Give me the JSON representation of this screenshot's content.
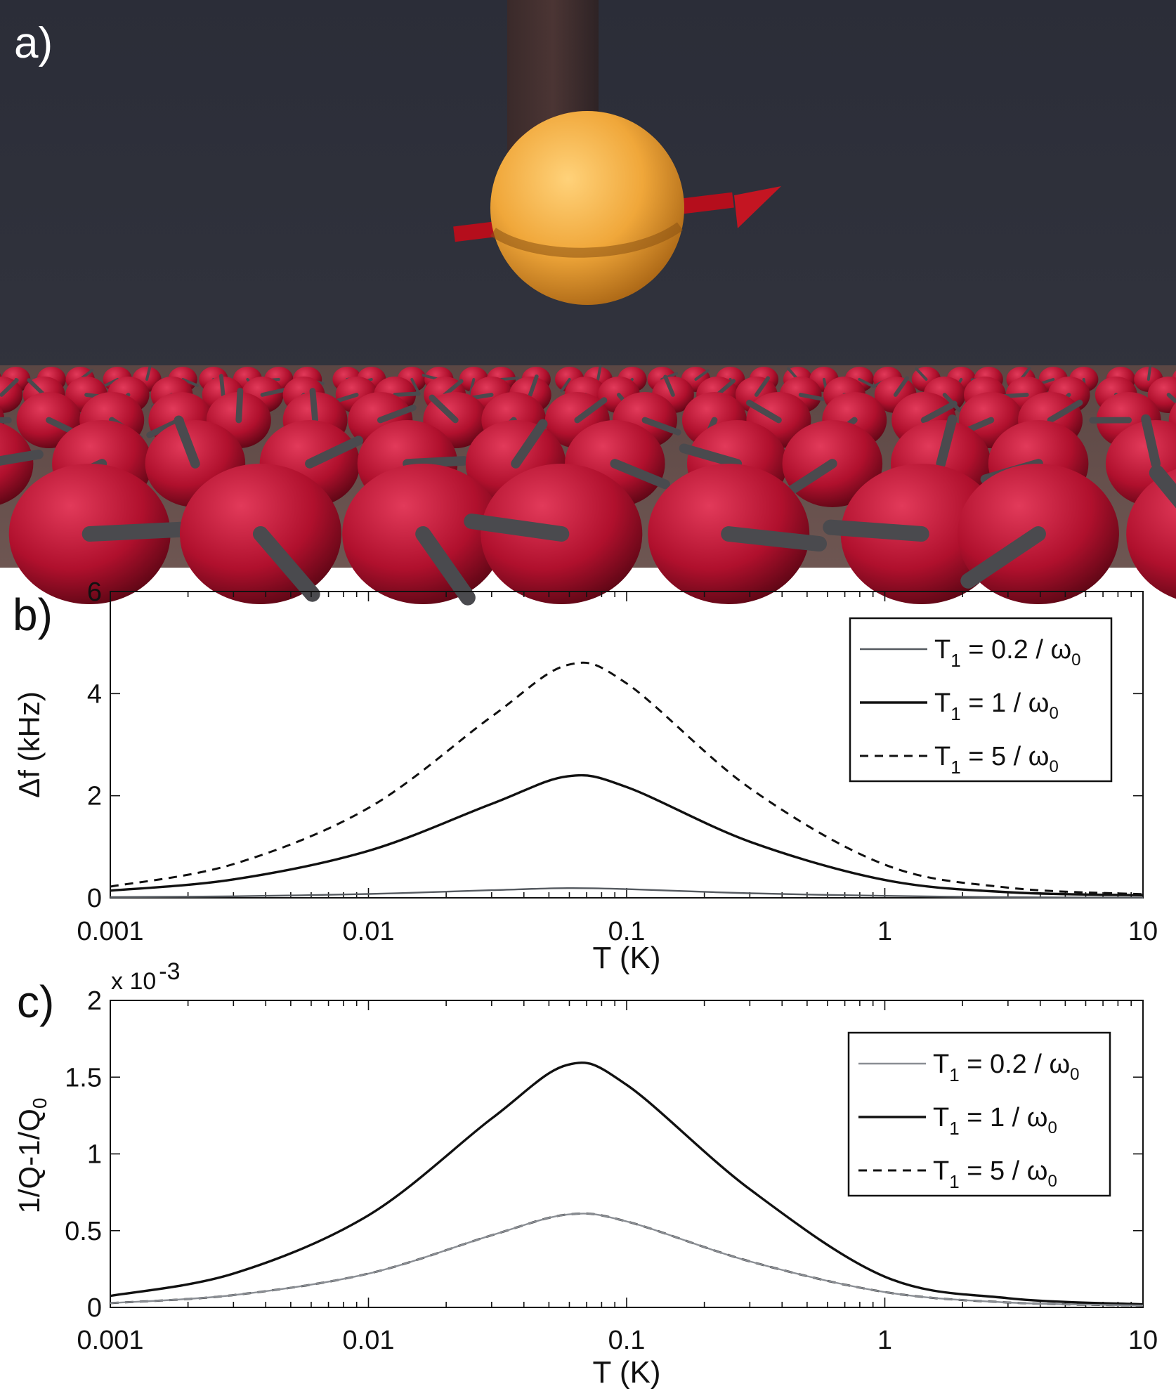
{
  "panels": {
    "a": {
      "label": "a)"
    },
    "b": {
      "label": "b)"
    },
    "c": {
      "label": "c)"
    }
  },
  "chart_data": [
    {
      "type": "line",
      "panel": "b",
      "xlabel": "T (K)",
      "ylabel": "Δf (kHz)",
      "xscale": "log",
      "xlim": [
        0.001,
        10
      ],
      "ylim": [
        0,
        6
      ],
      "xticks": [
        0.001,
        0.01,
        0.1,
        1,
        10
      ],
      "xtick_labels": [
        "0.001",
        "0.01",
        "0.1",
        "1",
        "10"
      ],
      "yticks": [
        0,
        2,
        4,
        6
      ],
      "ytick_labels": [
        "0",
        "2",
        "4",
        "6"
      ],
      "legend_placement": "top-right",
      "series": [
        {
          "name": "T_1 = 0.2 / ω_0",
          "legend": {
            "main": "T",
            "sub": "1",
            "rest": " = 0.2 / ω",
            "sub2": "0"
          },
          "style": "thin-gray",
          "color": "#555a60",
          "x": [
            0.001,
            0.003,
            0.01,
            0.03,
            0.059,
            0.1,
            0.3,
            1,
            3,
            10
          ],
          "y": [
            0.014,
            0.03,
            0.075,
            0.15,
            0.19,
            0.17,
            0.09,
            0.038,
            0.013,
            0.004
          ]
        },
        {
          "name": "T_1 = 1 / ω_0",
          "legend": {
            "main": "T",
            "sub": "1",
            "rest": " = 1 / ω",
            "sub2": "0"
          },
          "style": "solid",
          "color": "#111111",
          "x": [
            0.001,
            0.003,
            0.01,
            0.03,
            0.059,
            0.1,
            0.3,
            1,
            3,
            10
          ],
          "y": [
            0.14,
            0.36,
            0.92,
            1.84,
            2.38,
            2.17,
            1.1,
            0.35,
            0.11,
            0.05
          ]
        },
        {
          "name": "T_1 = 5 / ω_0",
          "legend": {
            "main": "T",
            "sub": "1",
            "rest": " = 5 / ω",
            "sub2": "0"
          },
          "style": "dashed",
          "color": "#111111",
          "x": [
            0.001,
            0.003,
            0.01,
            0.03,
            0.059,
            0.1,
            0.3,
            1,
            3,
            10
          ],
          "y": [
            0.22,
            0.66,
            1.76,
            3.55,
            4.56,
            4.2,
            2.15,
            0.65,
            0.2,
            0.07
          ]
        }
      ]
    },
    {
      "type": "line",
      "panel": "c",
      "xlabel": "T (K)",
      "ylabel": {
        "main": "1/Q-1/Q",
        "sub": "0"
      },
      "xscale": "log",
      "xlim": [
        0.001,
        10
      ],
      "ylim": [
        0,
        2
      ],
      "y_multiplier": {
        "main": "x 10",
        "exp": "-3"
      },
      "xticks": [
        0.001,
        0.01,
        0.1,
        1,
        10
      ],
      "xtick_labels": [
        "0.001",
        "0.01",
        "0.1",
        "1",
        "10"
      ],
      "yticks": [
        0,
        0.5,
        1,
        1.5,
        2
      ],
      "ytick_labels": [
        "0",
        "0.5",
        "1",
        "1.5",
        "2"
      ],
      "legend_placement": "top-right",
      "series": [
        {
          "name": "T_1 = 0.2 / ω_0",
          "legend": {
            "main": "T",
            "sub": "1",
            "rest": " = 0.2 / ω",
            "sub2": "0"
          },
          "style": "thin-gray",
          "color": "#8a8e94",
          "x": [
            0.001,
            0.003,
            0.01,
            0.03,
            0.059,
            0.1,
            0.3,
            1,
            3,
            10
          ],
          "y": [
            0.028,
            0.08,
            0.22,
            0.47,
            0.605,
            0.56,
            0.3,
            0.1,
            0.032,
            0.012
          ]
        },
        {
          "name": "T_1 = 1 / ω_0",
          "legend": {
            "main": "T",
            "sub": "1",
            "rest": " = 1 / ω",
            "sub2": "0"
          },
          "style": "solid",
          "color": "#111111",
          "x": [
            0.001,
            0.003,
            0.01,
            0.03,
            0.059,
            0.1,
            0.3,
            1,
            3,
            10
          ],
          "y": [
            0.075,
            0.22,
            0.6,
            1.23,
            1.58,
            1.45,
            0.77,
            0.2,
            0.06,
            0.02
          ]
        },
        {
          "name": "T_1 = 5 / ω_0",
          "legend": {
            "main": "T",
            "sub": "1",
            "rest": " = 5 / ω",
            "sub2": "0"
          },
          "style": "dashed",
          "color": "#111111",
          "x": [
            0.001,
            0.003,
            0.01,
            0.03,
            0.059,
            0.1,
            0.3,
            1,
            3,
            10
          ],
          "y": [
            0.028,
            0.08,
            0.22,
            0.47,
            0.605,
            0.56,
            0.3,
            0.1,
            0.032,
            0.012
          ]
        }
      ]
    }
  ]
}
